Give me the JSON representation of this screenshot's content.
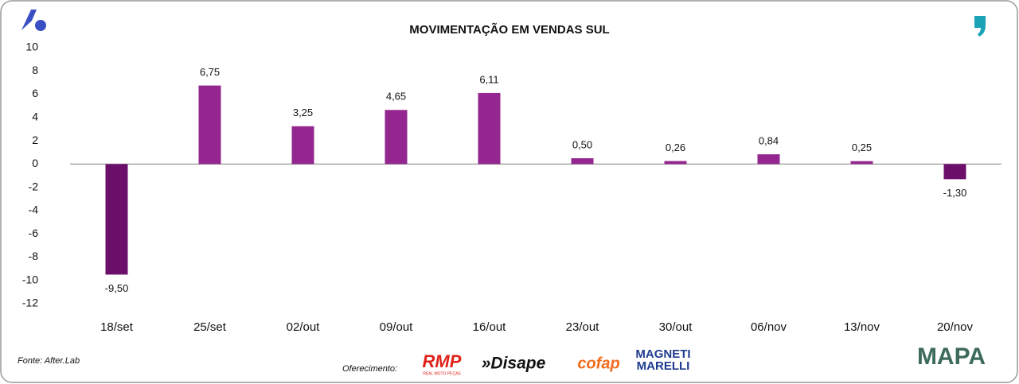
{
  "chart_data": {
    "type": "bar",
    "title": "MOVIMENTAÇÃO EM VENDAS SUL",
    "categories": [
      "18/set",
      "25/set",
      "02/out",
      "09/out",
      "16/out",
      "23/out",
      "30/out",
      "06/nov",
      "13/nov",
      "20/nov"
    ],
    "values": [
      -9.5,
      6.75,
      3.25,
      4.65,
      6.11,
      0.5,
      0.26,
      0.84,
      0.25,
      -1.3
    ],
    "value_labels": [
      "-9,50",
      "6,75",
      "3,25",
      "4,65",
      "6,11",
      "0,50",
      "0,26",
      "0,84",
      "0,25",
      "-1,30"
    ],
    "color": "#93278f",
    "negative_color": "#6b0f6b",
    "ylim": [
      -12,
      10
    ],
    "yticks": [
      10,
      8,
      6,
      4,
      2,
      0,
      -2,
      -4,
      -6,
      -8,
      -10,
      -12
    ],
    "grid": false,
    "source": "Fonte: After.Lab",
    "sponsor_label": "Oferecimento:",
    "sponsors": [
      "RMP",
      "REAL MOTO PEÇAS",
      "»Disape",
      "cofap",
      "MAGNETI",
      "MARELLI",
      "MAPA"
    ]
  }
}
